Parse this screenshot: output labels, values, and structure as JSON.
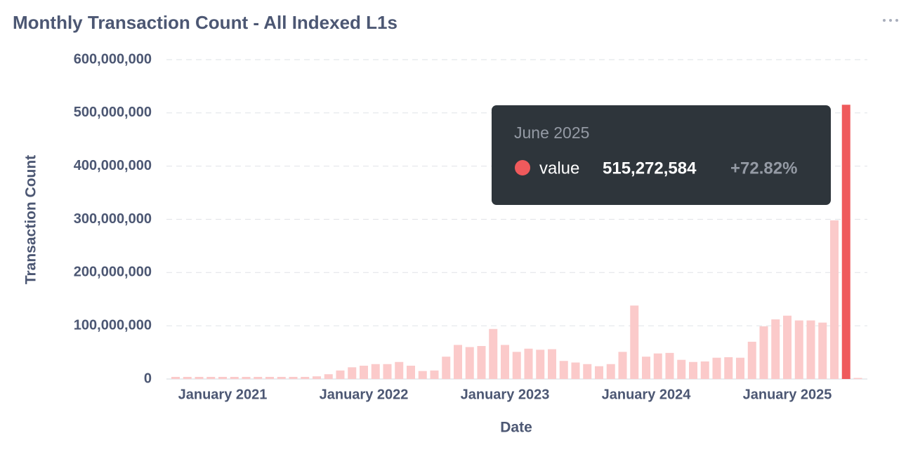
{
  "chart_data": {
    "type": "bar",
    "title": "Monthly Transaction Count - All Indexed L1s",
    "x_label": "Date",
    "y_label": "Transaction Count",
    "categories": [
      null,
      null,
      null,
      null,
      "January 2021",
      null,
      null,
      null,
      null,
      null,
      null,
      null,
      null,
      null,
      null,
      null,
      "January 2022",
      null,
      null,
      null,
      null,
      null,
      null,
      null,
      null,
      null,
      null,
      null,
      "January 2023",
      null,
      null,
      null,
      null,
      null,
      null,
      null,
      null,
      null,
      null,
      null,
      "January 2024",
      null,
      null,
      null,
      null,
      null,
      null,
      null,
      null,
      null,
      null,
      null,
      "January 2025",
      null,
      null,
      null,
      null,
      null,
      null
    ],
    "series": [
      {
        "name": "value",
        "color": "#ef5a5c",
        "faded_color": "#fbcaca",
        "values": [
          4000000,
          4000000,
          4000000,
          4000000,
          4000000,
          4000000,
          4000000,
          4000000,
          4000000,
          4000000,
          4000000,
          4000000,
          5000000,
          9000000,
          16000000,
          22000000,
          25000000,
          28000000,
          28000000,
          32000000,
          25000000,
          15000000,
          16000000,
          42000000,
          64000000,
          60000000,
          62000000,
          94000000,
          64000000,
          51000000,
          57000000,
          55000000,
          56000000,
          34000000,
          31000000,
          28000000,
          24000000,
          28000000,
          51000000,
          138000000,
          42000000,
          48000000,
          49000000,
          36000000,
          32000000,
          33000000,
          40000000,
          41000000,
          40000000,
          70000000,
          99000000,
          112000000,
          119000000,
          110000000,
          110000000,
          106000000,
          298000000,
          515272584,
          2000000
        ]
      }
    ],
    "ylim": [
      0,
      600000000
    ],
    "yticks": [
      0,
      {
        "value": 100000000,
        "label": "100,000,000"
      },
      {
        "value": 200000000,
        "label": "200,000,000"
      },
      {
        "value": 300000000,
        "label": "300,000,000"
      },
      {
        "value": 400000000,
        "label": "400,000,000"
      },
      {
        "value": 500000000,
        "label": "500,000,000"
      },
      {
        "value": 600000000,
        "label": "600,000,000"
      }
    ],
    "grid": true,
    "tooltip": {
      "title": "June 2025",
      "series_name": "value",
      "value": 515272584,
      "value_label": "515,272,584",
      "change": "+72.82%"
    }
  }
}
